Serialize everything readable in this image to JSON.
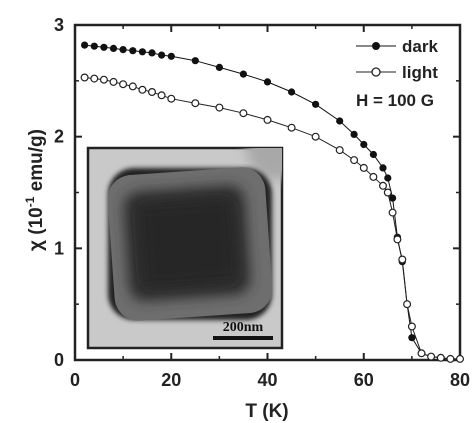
{
  "chart_data": {
    "type": "line",
    "xlabel": "T (K)",
    "ylabel_main": "χ (10",
    "ylabel_sup": "-1",
    "ylabel_unit": " emu/g)",
    "xlim": [
      0,
      80
    ],
    "ylim": [
      0,
      3
    ],
    "xticks": [
      "0",
      "20",
      "40",
      "60",
      "80"
    ],
    "yticks": [
      "0",
      "1",
      "2",
      "3"
    ],
    "grid": false,
    "legend_position": "top-right",
    "field_annotation": "H = 100 G",
    "series": [
      {
        "name": "dark",
        "marker": "filled-circle",
        "x": [
          2,
          4,
          6,
          8,
          10,
          12,
          14,
          16,
          18,
          20,
          25,
          30,
          35,
          40,
          45,
          50,
          55,
          58,
          60,
          62,
          64,
          65,
          66,
          67,
          68,
          69,
          70,
          72,
          74,
          76,
          78,
          80
        ],
        "y": [
          2.82,
          2.81,
          2.8,
          2.79,
          2.78,
          2.77,
          2.76,
          2.75,
          2.73,
          2.72,
          2.68,
          2.62,
          2.56,
          2.49,
          2.4,
          2.29,
          2.14,
          2.02,
          1.93,
          1.84,
          1.72,
          1.63,
          1.45,
          1.1,
          0.88,
          0.5,
          0.2,
          0.06,
          0.03,
          0.02,
          0.01,
          0.01
        ]
      },
      {
        "name": "light",
        "marker": "open-circle",
        "x": [
          2,
          4,
          6,
          8,
          10,
          12,
          14,
          16,
          18,
          20,
          25,
          30,
          35,
          40,
          45,
          50,
          55,
          58,
          60,
          62,
          64,
          65,
          66,
          67,
          68,
          69,
          70,
          72,
          74,
          76,
          78,
          80
        ],
        "y": [
          2.53,
          2.52,
          2.51,
          2.49,
          2.47,
          2.45,
          2.42,
          2.4,
          2.37,
          2.34,
          2.3,
          2.26,
          2.21,
          2.15,
          2.08,
          2.0,
          1.88,
          1.79,
          1.72,
          1.64,
          1.56,
          1.5,
          1.32,
          1.08,
          0.9,
          0.5,
          0.3,
          0.06,
          0.03,
          0.02,
          0.01,
          0.01
        ]
      }
    ],
    "inset": {
      "content": "TEM image of a single rounded-square core–shell nanocube",
      "scale_bar_label": "200nm"
    }
  },
  "colors": {
    "axis": "#222222",
    "dark_series": "#111111",
    "light_series": "#222222",
    "inset_background": "#c9c9c9"
  }
}
